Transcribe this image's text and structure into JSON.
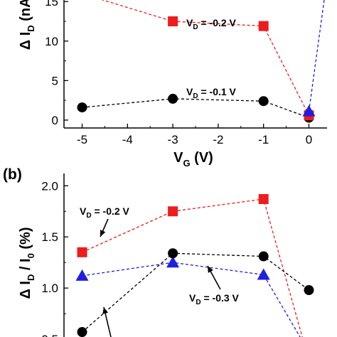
{
  "chart_data": [
    {
      "type": "line",
      "title": "",
      "xlabel_main": "V",
      "xlabel_sub": "G",
      "xlabel_unit": " (V)",
      "ylabel_main": "Δ I",
      "ylabel_sub": "D",
      "ylabel_unit": " (nA)",
      "xlim": [
        -5.4,
        0.4
      ],
      "ylim": [
        -1,
        17
      ],
      "x_ticks": [
        -5,
        -4,
        -3,
        -2,
        -1,
        0
      ],
      "x_tick_labels": [
        "-5",
        "-4",
        "-3",
        "-2",
        "-1",
        "0"
      ],
      "y_ticks": [
        0,
        5,
        10,
        15
      ],
      "y_tick_labels": [
        "0",
        "5",
        "10",
        "15"
      ],
      "grid": false,
      "series": [
        {
          "name": "",
          "label_main": "V",
          "label_sub": "D",
          "label_value": " = -0.1 V",
          "color": "#000000",
          "marker": "circle",
          "x": [
            -5,
            -3,
            -1,
            0
          ],
          "y": [
            1.6,
            2.7,
            2.4,
            0.3
          ]
        },
        {
          "name": "",
          "label_main": "V",
          "label_sub": "D",
          "label_value": " = -0.2 V",
          "color": "#ee1c1c",
          "marker": "square",
          "x": [
            -5,
            -3,
            -1,
            0
          ],
          "y": [
            16.0,
            12.5,
            11.9,
            0.6
          ]
        },
        {
          "name": "",
          "color": "#1f1fe0",
          "marker": "triangle",
          "x": [
            0,
            0.38
          ],
          "y": [
            1.1,
            17.0
          ]
        }
      ]
    },
    {
      "type": "line",
      "panel_label": "(b)",
      "title": "",
      "ylabel": "Δ I_D / I_0 (%)",
      "ylabel_parts": [
        "Δ I",
        "D",
        " / I",
        "0",
        " (%)"
      ],
      "xlim": [
        -5.4,
        0.4
      ],
      "ylim": [
        0.48,
        2.12
      ],
      "y_ticks": [
        0.5,
        1.0,
        1.5,
        2.0
      ],
      "y_tick_labels": [
        "0.5",
        "1.0",
        "1.5",
        "2.0"
      ],
      "grid": false,
      "series": [
        {
          "name": "",
          "label_main": "V",
          "label_sub": "D",
          "label_value": " = -0.2 V",
          "color": "#ee1c1c",
          "marker": "square",
          "x": [
            -5,
            -3,
            -1,
            -0.1
          ],
          "y": [
            1.35,
            1.75,
            1.87,
            0.45
          ]
        },
        {
          "name": "",
          "label_main": "V",
          "label_sub": "D",
          "label_value": " = -0.3 V",
          "color": "#1f1fe0",
          "marker": "triangle",
          "x": [
            -5,
            -3,
            -1,
            -0.1
          ],
          "y": [
            1.12,
            1.25,
            1.13,
            0.45
          ]
        },
        {
          "name": "",
          "color": "#000000",
          "marker": "circle",
          "x": [
            -5,
            -3,
            -1,
            0
          ],
          "y": [
            0.57,
            1.34,
            1.31,
            0.98
          ]
        }
      ]
    }
  ]
}
